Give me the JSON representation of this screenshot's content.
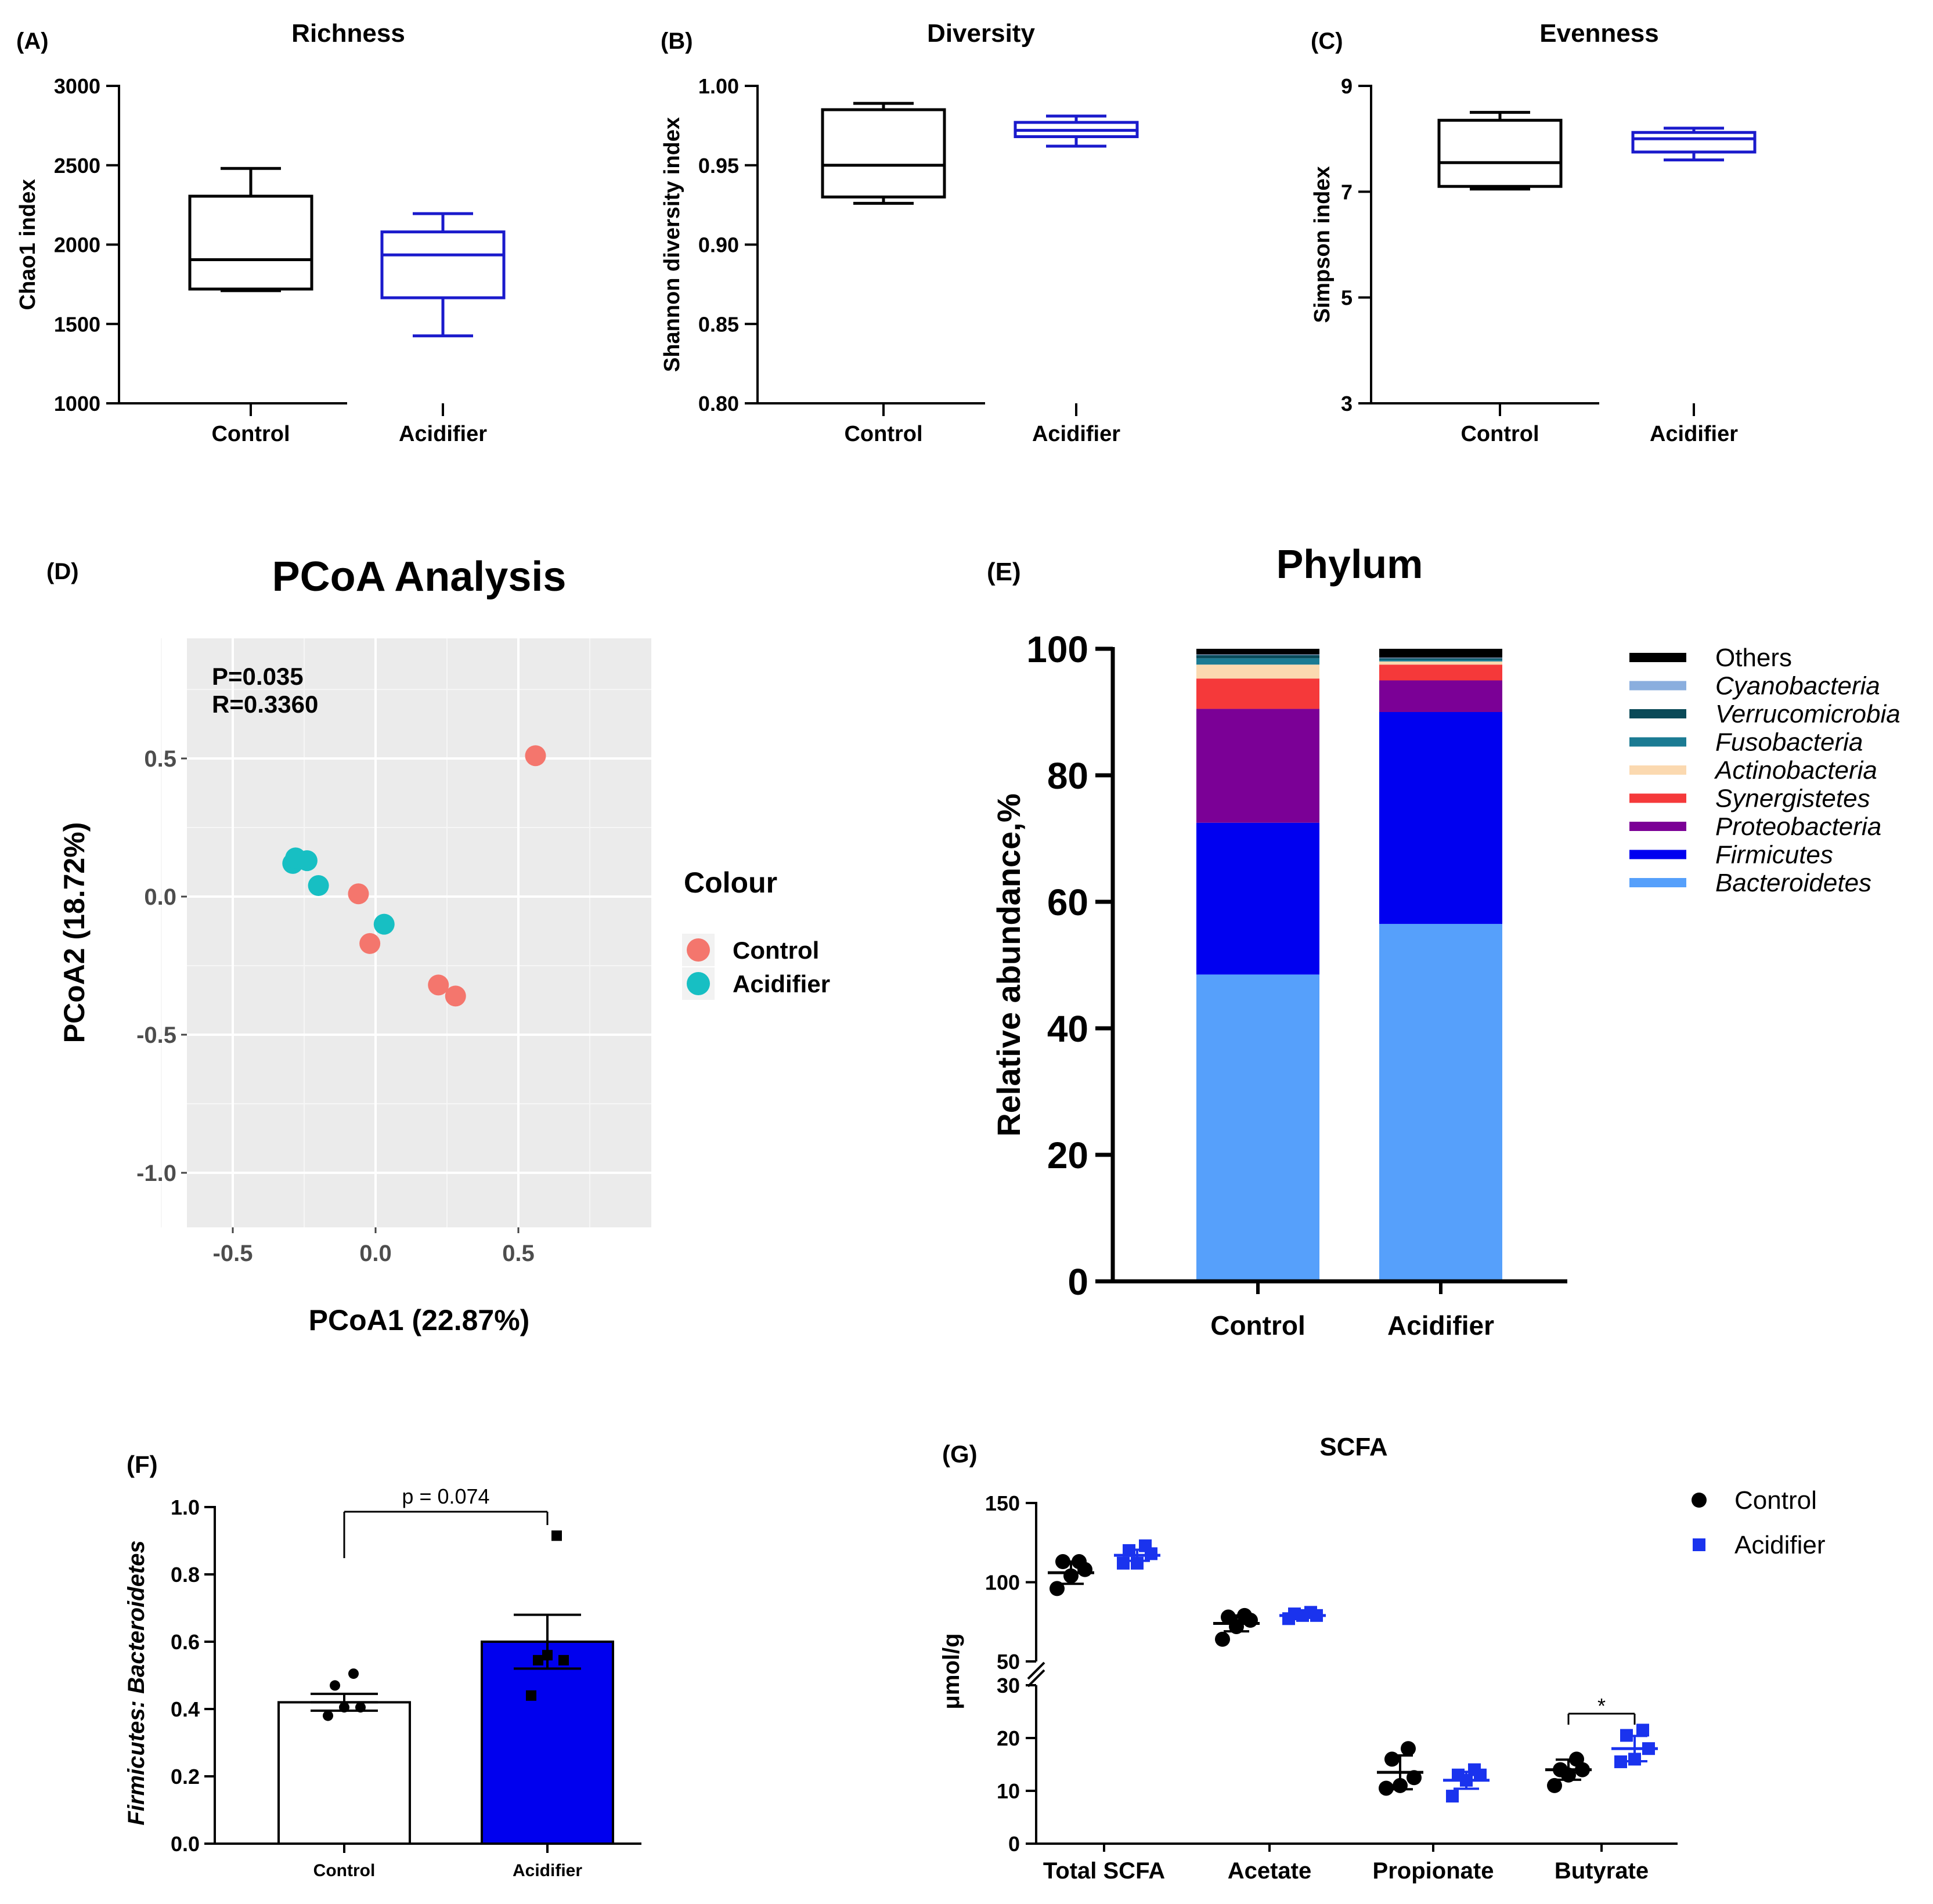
{
  "colors": {
    "control_box": "#000000",
    "acidifier_box": "#1a1acc",
    "pcoa_control": "#f4766d",
    "pcoa_acidifier": "#17bfc3",
    "pcoa_panel": "#ebebeb",
    "bar_acidifier": "#0000ee",
    "scfa_acidifier": "#1a33ee"
  },
  "chart_data": [
    {
      "id": "A",
      "type": "box",
      "panel_label": "(A)",
      "title": "Richness",
      "ylabel": "Chao1 index",
      "ylim": [
        1000,
        3000
      ],
      "yticks": [
        1000,
        1500,
        2000,
        2500,
        3000
      ],
      "categories": [
        "Control",
        "Acidifier"
      ],
      "boxes": [
        {
          "min": 1710,
          "q1": 1720,
          "median": 1905,
          "q3": 2305,
          "max": 2480
        },
        {
          "min": 1425,
          "q1": 1665,
          "median": 1935,
          "q3": 2080,
          "max": 2195
        }
      ]
    },
    {
      "id": "B",
      "type": "box",
      "panel_label": "(B)",
      "title": "Diversity",
      "ylabel": "Shannon diversity index",
      "ylim": [
        0.8,
        1.0
      ],
      "yticks": [
        "0.80",
        "0.85",
        "0.90",
        "0.95",
        "1.00"
      ],
      "categories": [
        "Control",
        "Acidifier"
      ],
      "boxes": [
        {
          "min": 0.926,
          "q1": 0.93,
          "median": 0.95,
          "q3": 0.985,
          "max": 0.989
        },
        {
          "min": 0.962,
          "q1": 0.968,
          "median": 0.972,
          "q3": 0.977,
          "max": 0.981
        }
      ]
    },
    {
      "id": "C",
      "type": "box",
      "panel_label": "(C)",
      "title": "Evenness",
      "ylabel": "Simpson index",
      "ylim": [
        3,
        9
      ],
      "yticks": [
        3,
        5,
        7,
        9
      ],
      "categories": [
        "Control",
        "Acidifier"
      ],
      "boxes": [
        {
          "min": 7.05,
          "q1": 7.1,
          "median": 7.55,
          "q3": 8.35,
          "max": 8.5
        },
        {
          "min": 7.6,
          "q1": 7.75,
          "median": 8.0,
          "q3": 8.12,
          "max": 8.2
        }
      ]
    },
    {
      "id": "D",
      "type": "scatter",
      "panel_label": "(D)",
      "title": "PCoA Analysis",
      "xlabel": "PCoA1 (22.87%)",
      "ylabel": "PCoA2 (18.72%)",
      "xlim": [
        -0.67,
        0.98
      ],
      "ylim": [
        -1.2,
        0.9
      ],
      "xticks": [
        "-0.5",
        "0.0",
        "0.5"
      ],
      "yticks": [
        "-1.0",
        "-0.5",
        "0.0",
        "0.5"
      ],
      "annotation": [
        "P=0.035",
        "R=0.3360"
      ],
      "legend_title": "Colour",
      "series": [
        {
          "name": "Control",
          "points": [
            [
              0.56,
              0.51
            ],
            [
              -0.06,
              0.01
            ],
            [
              -0.02,
              -0.17
            ],
            [
              0.22,
              -0.32
            ],
            [
              0.28,
              -0.36
            ]
          ]
        },
        {
          "name": "Acidifier",
          "points": [
            [
              -0.29,
              0.12
            ],
            [
              -0.28,
              0.14
            ],
            [
              -0.24,
              0.13
            ],
            [
              -0.2,
              0.04
            ],
            [
              0.03,
              -0.1
            ]
          ]
        }
      ]
    },
    {
      "id": "E",
      "type": "bar",
      "stacked": true,
      "panel_label": "(E)",
      "title": "Phylum",
      "ylabel": "Relative abundance,%",
      "ylim": [
        0,
        100
      ],
      "yticks": [
        0,
        20,
        40,
        60,
        80,
        100
      ],
      "categories": [
        "Control",
        "Acidifier"
      ],
      "series": [
        {
          "name": "Bacteroidetes",
          "italic": true,
          "color": "#56a0fb",
          "values": [
            48.5,
            56.5
          ]
        },
        {
          "name": "Firmicutes",
          "italic": true,
          "color": "#0000f0",
          "values": [
            24.0,
            33.5
          ]
        },
        {
          "name": "Proteobacteria",
          "italic": true,
          "color": "#7b0096",
          "values": [
            18.0,
            5.0
          ]
        },
        {
          "name": "Synergistetes",
          "italic": true,
          "color": "#f5393a",
          "values": [
            4.8,
            2.5
          ]
        },
        {
          "name": "Actinobacteria",
          "italic": true,
          "color": "#fbd9b0",
          "values": [
            2.2,
            0.5
          ]
        },
        {
          "name": "Fusobacteria",
          "italic": true,
          "color": "#1b7b93",
          "values": [
            1.0,
            0.3
          ]
        },
        {
          "name": "Verrucomicrobia",
          "italic": true,
          "color": "#0a4a58",
          "values": [
            0.5,
            0.2
          ]
        },
        {
          "name": "Cyanobacteria",
          "italic": true,
          "color": "#8aaede",
          "values": [
            0.1,
            0.1
          ]
        },
        {
          "name": "Others",
          "italic": false,
          "color": "#000000",
          "values": [
            0.9,
            1.4
          ]
        }
      ]
    },
    {
      "id": "F",
      "type": "bar",
      "panel_label": "(F)",
      "ylabel_italic": "Firmicutes: Bacteroidetes",
      "ylim": [
        0,
        1.0
      ],
      "yticks": [
        "0.0",
        "0.2",
        "0.4",
        "0.6",
        "0.8",
        "1.0"
      ],
      "categories": [
        "Control",
        "Acidifier"
      ],
      "values": [
        0.42,
        0.6
      ],
      "sem": [
        0.025,
        0.08
      ],
      "points": [
        [
          0.38,
          0.405,
          0.405,
          0.47,
          0.505
        ],
        [
          0.44,
          0.56,
          0.545,
          0.545,
          0.915
        ]
      ],
      "significance": "p = 0.074"
    },
    {
      "id": "G",
      "type": "scatter",
      "panel_label": "(G)",
      "title": "SCFA",
      "ylabel": "μmol/g",
      "axis_break": [
        30,
        50
      ],
      "yticks_upper": [
        50,
        100,
        150
      ],
      "yticks_lower": [
        0,
        10,
        20,
        30
      ],
      "categories": [
        "Total SCFA",
        "Acetate",
        "Propionate",
        "Butyrate"
      ],
      "series": [
        {
          "name": "Control",
          "marker": "circle",
          "mean": [
            106,
            74,
            13.5,
            14
          ],
          "sem": [
            7,
            5,
            3.2,
            1.9
          ],
          "points": [
            [
              96,
              104,
              108,
              113,
              113
            ],
            [
              64,
              72,
              76,
              78,
              79
            ],
            [
              10.5,
              11,
              12.5,
              16,
              18
            ],
            [
              11,
              13,
              14,
              14,
              16
            ]
          ]
        },
        {
          "name": "Acidifier",
          "marker": "square",
          "mean": [
            117,
            79,
            12,
            18
          ],
          "sem": [
            3.5,
            1.5,
            1.6,
            2.4
          ],
          "points": [
            [
              112,
              112,
              118,
              120,
              123
            ],
            [
              77,
              79,
              79,
              80,
              81
            ],
            [
              9,
              12,
              13,
              13,
              14
            ],
            [
              15.5,
              16,
              18,
              20.5,
              21.5
            ]
          ]
        }
      ],
      "significance": [
        {
          "category": "Butyrate",
          "label": "*"
        }
      ]
    }
  ]
}
